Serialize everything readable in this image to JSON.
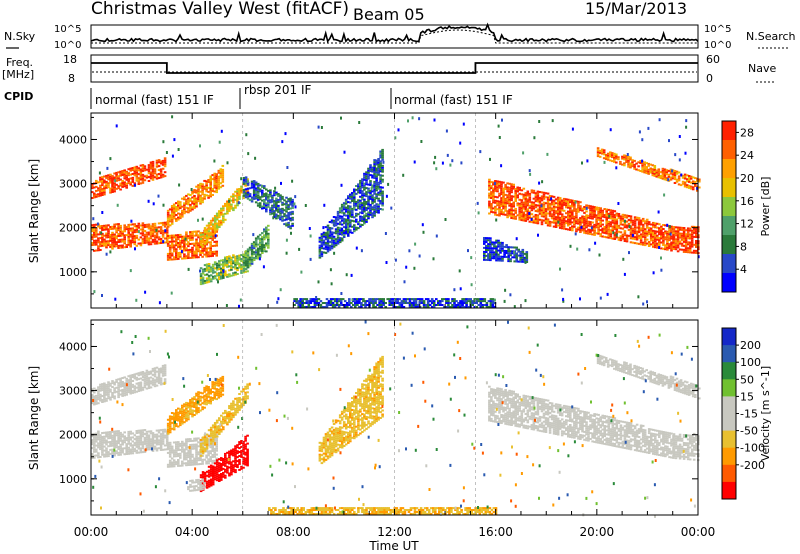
{
  "header": {
    "title": "Christmas Valley West (fitACF)",
    "beam": "Beam 05",
    "date": "15/Mar/2013"
  },
  "sky_panel": {
    "left_label": "N.Sky",
    "right_label": "N.Search",
    "left_ticks": [
      "10^5",
      "10^0"
    ],
    "right_ticks": [
      "10^5",
      "10^0"
    ]
  },
  "freq_panel": {
    "left_label_1": "Freq.",
    "left_label_2": "[MHz]",
    "right_label": "Nave",
    "left_ticks": [
      "18",
      "8"
    ],
    "right_ticks": [
      "60",
      "0"
    ]
  },
  "cpid": {
    "label": "CPID",
    "segments": [
      {
        "label": "normal (fast) 151 IF",
        "start_h": 0,
        "end_h": 6
      },
      {
        "label": "rbsp 201 IF",
        "start_h": 6,
        "end_h": 12
      },
      {
        "label": "normal (fast) 151 IF",
        "start_h": 12,
        "end_h": 24
      }
    ]
  },
  "colors": {
    "power": [
      "#0000ff",
      "#2848c8",
      "#2a7a3a",
      "#4fa06a",
      "#8cc83c",
      "#e8c000",
      "#ffa000",
      "#ff6000",
      "#ff2000"
    ],
    "velocity": [
      "#ff0000",
      "#ff5a00",
      "#ff9a00",
      "#e8c030",
      "#c8c8c0",
      "#c8c8c0",
      "#70c030",
      "#2a8a3a",
      "#2a5ab0",
      "#1428c8"
    ]
  },
  "chart_data": {
    "type": "heatmap",
    "xlabel": "Time UT",
    "x_ticks": [
      "00:00",
      "04:00",
      "08:00",
      "12:00",
      "16:00",
      "20:00",
      "00:00"
    ],
    "x_range_hours": [
      0,
      24
    ],
    "ylabel": "Slant Range [km]",
    "y_ticks": [
      1000,
      2000,
      3000,
      4000
    ],
    "y_range_km": [
      180,
      4600
    ],
    "panels": [
      {
        "name": "Power",
        "colorbar_label": "Power [dB]",
        "colorbar_ticks": [
          4,
          8,
          12,
          16,
          20,
          24,
          28
        ],
        "colorbar_range": [
          0,
          30
        ],
        "regions": [
          {
            "t0": 0.0,
            "t1": 2.9,
            "r0_start": 2650,
            "r1_start": 3050,
            "r0_end": 3150,
            "r1_end": 3600,
            "val": 27
          },
          {
            "t0": 0.0,
            "t1": 3.0,
            "r0_start": 1450,
            "r1_start": 2050,
            "r0_end": 1650,
            "r1_end": 2100,
            "val": 26
          },
          {
            "t0": 3.0,
            "t1": 5.0,
            "r0_start": 1250,
            "r1_start": 1800,
            "r0_end": 1350,
            "r1_end": 2000,
            "val": 25
          },
          {
            "t0": 3.0,
            "t1": 5.2,
            "r0_start": 2000,
            "r1_start": 2400,
            "r0_end": 2900,
            "r1_end": 3400,
            "val": 23
          },
          {
            "t0": 4.3,
            "t1": 6.2,
            "r0_start": 1500,
            "r1_start": 1900,
            "r0_end": 2800,
            "r1_end": 3200,
            "val": 19
          },
          {
            "t0": 4.3,
            "t1": 6.2,
            "r0_start": 700,
            "r1_start": 1100,
            "r0_end": 1000,
            "r1_end": 1500,
            "val": 14
          },
          {
            "t0": 6.0,
            "t1": 7.0,
            "r0_start": 1000,
            "r1_start": 1400,
            "r0_end": 1500,
            "r1_end": 2100,
            "val": 11
          },
          {
            "t0": 6.0,
            "t1": 8.0,
            "r0_start": 2700,
            "r1_start": 3150,
            "r0_end": 1900,
            "r1_end": 2600,
            "val": 7
          },
          {
            "t0": 9.0,
            "t1": 11.5,
            "r0_start": 1300,
            "r1_start": 1800,
            "r0_end": 2400,
            "r1_end": 3800,
            "val": 6
          },
          {
            "t0": 15.7,
            "t1": 23.0,
            "r0_start": 2300,
            "r1_start": 3100,
            "r0_end": 1450,
            "r1_end": 2000,
            "val": 26
          },
          {
            "t0": 23.0,
            "t1": 24.0,
            "r0_start": 1450,
            "r1_start": 2000,
            "r0_end": 1400,
            "r1_end": 2000,
            "val": 27
          },
          {
            "t0": 20.0,
            "t1": 24.0,
            "r0_start": 3600,
            "r1_start": 3800,
            "r0_end": 2800,
            "r1_end": 3100,
            "val": 24
          },
          {
            "t0": 15.5,
            "t1": 17.2,
            "r0_start": 1250,
            "r1_start": 1800,
            "r0_end": 1200,
            "r1_end": 1450,
            "val": 5
          },
          {
            "t0": 8.0,
            "t1": 16.0,
            "r0_start": 180,
            "r1_start": 400,
            "r0_end": 180,
            "r1_end": 400,
            "val": 5
          }
        ]
      },
      {
        "name": "Velocity",
        "colorbar_label": "Velocity [m s^-1]",
        "colorbar_ticks": [
          200,
          100,
          50,
          15,
          -15,
          -50,
          -100,
          -200
        ],
        "colorbar_range": [
          -250,
          250
        ],
        "regions": [
          {
            "t0": 0.0,
            "t1": 2.9,
            "r0_start": 2650,
            "r1_start": 3050,
            "r0_end": 3150,
            "r1_end": 3600,
            "val": 0
          },
          {
            "t0": 0.0,
            "t1": 3.0,
            "r0_start": 1450,
            "r1_start": 2050,
            "r0_end": 1650,
            "r1_end": 2100,
            "val": 0
          },
          {
            "t0": 3.0,
            "t1": 5.0,
            "r0_start": 1250,
            "r1_start": 1800,
            "r0_end": 1350,
            "r1_end": 2000,
            "val": 0
          },
          {
            "t0": 3.0,
            "t1": 5.2,
            "r0_start": 2000,
            "r1_start": 2400,
            "r0_end": 2900,
            "r1_end": 3400,
            "val": -60
          },
          {
            "t0": 4.3,
            "t1": 6.2,
            "r0_start": 1500,
            "r1_start": 1900,
            "r0_end": 2800,
            "r1_end": 3200,
            "val": -40
          },
          {
            "t0": 4.3,
            "t1": 6.2,
            "r0_start": 700,
            "r1_start": 1100,
            "r0_end": 1300,
            "r1_end": 2000,
            "val": -230
          },
          {
            "t0": 3.8,
            "t1": 4.5,
            "r0_start": 700,
            "r1_start": 950,
            "r0_end": 750,
            "r1_end": 1000,
            "val": 0
          },
          {
            "t0": 9.0,
            "t1": 11.5,
            "r0_start": 1300,
            "r1_start": 1800,
            "r0_end": 2400,
            "r1_end": 3800,
            "val": -40
          },
          {
            "t0": 15.7,
            "t1": 23.0,
            "r0_start": 2300,
            "r1_start": 3100,
            "r0_end": 1450,
            "r1_end": 2000,
            "val": 0
          },
          {
            "t0": 23.0,
            "t1": 24.0,
            "r0_start": 1450,
            "r1_start": 2000,
            "r0_end": 1400,
            "r1_end": 2000,
            "val": 0
          },
          {
            "t0": 20.0,
            "t1": 24.0,
            "r0_start": 3600,
            "r1_start": 3800,
            "r0_end": 2800,
            "r1_end": 3100,
            "val": 0
          },
          {
            "t0": 7.0,
            "t1": 16.0,
            "r0_start": 180,
            "r1_start": 350,
            "r0_end": 180,
            "r1_end": 350,
            "val": -45
          }
        ]
      }
    ]
  }
}
